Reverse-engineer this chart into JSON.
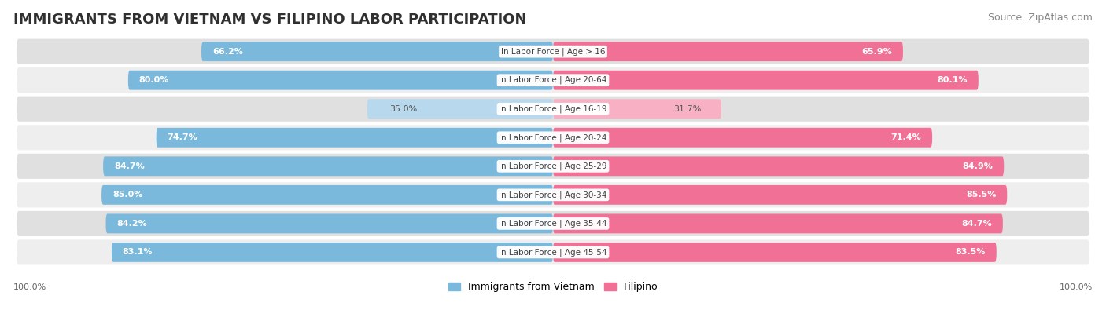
{
  "title": "IMMIGRANTS FROM VIETNAM VS FILIPINO LABOR PARTICIPATION",
  "source": "Source: ZipAtlas.com",
  "categories": [
    "In Labor Force | Age > 16",
    "In Labor Force | Age 20-64",
    "In Labor Force | Age 16-19",
    "In Labor Force | Age 20-24",
    "In Labor Force | Age 25-29",
    "In Labor Force | Age 30-34",
    "In Labor Force | Age 35-44",
    "In Labor Force | Age 45-54"
  ],
  "vietnam_values": [
    66.2,
    80.0,
    35.0,
    74.7,
    84.7,
    85.0,
    84.2,
    83.1
  ],
  "filipino_values": [
    65.9,
    80.1,
    31.7,
    71.4,
    84.9,
    85.5,
    84.7,
    83.5
  ],
  "vietnam_color": "#7ab8dc",
  "vietnam_color_light": "#b8d8ee",
  "filipino_color": "#f07096",
  "filipino_color_light": "#f8b0c4",
  "row_bg_color_dark": "#e0e0e0",
  "row_bg_color_light": "#eeeeee",
  "max_value": 100.0,
  "legend_vietnam": "Immigrants from Vietnam",
  "legend_filipino": "Filipino",
  "title_fontsize": 13,
  "source_fontsize": 9,
  "value_fontsize": 8,
  "cat_fontsize": 7.5
}
